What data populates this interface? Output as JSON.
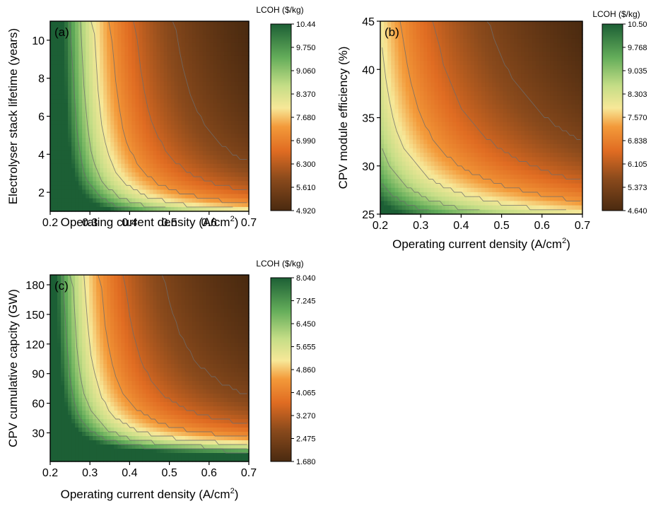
{
  "chart_data": [
    {
      "type": "heatmap",
      "panel_label": "(a)",
      "xlabel": "Operating current density (A/cm",
      "xlabel_sup": "2",
      "xlabel_end": ")",
      "ylabel": "Electrolyser stack lifetime (years)",
      "xlim": [
        0.2,
        0.7
      ],
      "ylim": [
        1,
        11
      ],
      "x_ticks": [
        "0.2",
        "0.3",
        "0.4",
        "0.5",
        "0.6",
        "0.7"
      ],
      "y_ticks": [
        "2",
        "4",
        "6",
        "8",
        "10"
      ],
      "y_tick_values": [
        2,
        4,
        6,
        8,
        10
      ],
      "colorbar": {
        "title": "LCOH ($/kg)",
        "min": 4.92,
        "max": 10.44,
        "ticks": [
          "10.44",
          "9.750",
          "9.060",
          "8.370",
          "7.680",
          "6.990",
          "6.300",
          "5.610",
          "4.920"
        ]
      },
      "model": {
        "base": 4.92,
        "a": 0.5,
        "b": 0.055,
        "p": 1.6,
        "c": 0.4,
        "d": 0.18,
        "q": 0.85
      }
    },
    {
      "type": "heatmap",
      "panel_label": "(b)",
      "xlabel": "Operating current density (A/cm",
      "xlabel_sup": "2",
      "xlabel_end": ")",
      "ylabel": "CPV module efficiency (%)",
      "xlim": [
        0.2,
        0.7
      ],
      "ylim": [
        25,
        45
      ],
      "x_ticks": [
        "0.2",
        "0.3",
        "0.4",
        "0.5",
        "0.6",
        "0.7"
      ],
      "y_ticks": [
        "25",
        "30",
        "35",
        "40",
        "45"
      ],
      "y_tick_values": [
        25,
        30,
        35,
        40,
        45
      ],
      "colorbar": {
        "title": "LCOH ($/kg)",
        "min": 4.64,
        "max": 10.5,
        "ticks": [
          "10.50",
          "9.768",
          "9.035",
          "8.303",
          "7.570",
          "6.838",
          "6.105",
          "5.373",
          "4.640"
        ]
      },
      "model": {
        "base": 4.64,
        "a": 0.62,
        "b": 0.1,
        "p": 1.0,
        "c": 0.7,
        "d": 0.6,
        "q": 1.0
      }
    },
    {
      "type": "heatmap",
      "panel_label": "(c)",
      "xlabel": "Operating current density (A/cm",
      "xlabel_sup": "2",
      "xlabel_end": ")",
      "ylabel": "CPV cumulative capcity (GW)",
      "xlim": [
        0.2,
        0.7
      ],
      "ylim": [
        1,
        190
      ],
      "x_ticks": [
        "0.2",
        "0.3",
        "0.4",
        "0.5",
        "0.6",
        "0.7"
      ],
      "y_ticks": [
        "30",
        "60",
        "90",
        "120",
        "150",
        "180"
      ],
      "y_tick_values": [
        30,
        60,
        90,
        120,
        150,
        180
      ],
      "colorbar": {
        "title": "LCOH ($/kg)",
        "min": 1.68,
        "max": 8.04,
        "ticks": [
          "8.040",
          "7.245",
          "6.450",
          "5.655",
          "4.860",
          "4.065",
          "3.270",
          "2.475",
          "1.680"
        ]
      },
      "model": {
        "base": 1.68,
        "a": 0.5,
        "b": 0.035,
        "p": 1.6,
        "c": 0.55,
        "d": 0.03,
        "q": 0.85
      }
    }
  ]
}
